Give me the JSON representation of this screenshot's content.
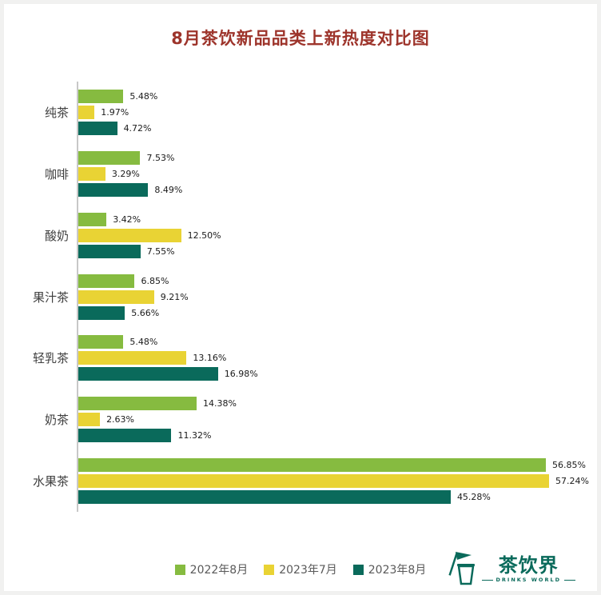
{
  "title": "8月茶饮新品品类上新热度对比图",
  "colors": {
    "title": "#9d342b",
    "axis": "#c8c8c8",
    "series_2022_08": "#86bb40",
    "series_2023_07": "#e9d334",
    "series_2023_08": "#0a6a5b"
  },
  "chart_data": {
    "type": "bar",
    "orientation": "horizontal",
    "title": "8月茶饮新品品类上新热度对比图",
    "categories": [
      "纯茶",
      "咖啡",
      "酸奶",
      "果汁茶",
      "轻乳茶",
      "奶茶",
      "水果茶"
    ],
    "series": [
      {
        "name": "2022年8月",
        "color": "#86bb40",
        "values": [
          5.48,
          7.53,
          3.42,
          6.85,
          5.48,
          14.38,
          56.85
        ]
      },
      {
        "name": "2023年7月",
        "color": "#e9d334",
        "values": [
          1.97,
          3.29,
          12.5,
          9.21,
          13.16,
          2.63,
          57.24
        ]
      },
      {
        "name": "2023年8月",
        "color": "#0a6a5b",
        "values": [
          4.72,
          8.49,
          7.55,
          5.66,
          16.98,
          11.32,
          45.28
        ]
      }
    ],
    "value_suffix": "%",
    "xlim": [
      0,
      62
    ],
    "grid": false,
    "legend_position": "bottom"
  },
  "logo": {
    "name": "茶饮界",
    "subtitle": "DRINKS WORLD"
  }
}
